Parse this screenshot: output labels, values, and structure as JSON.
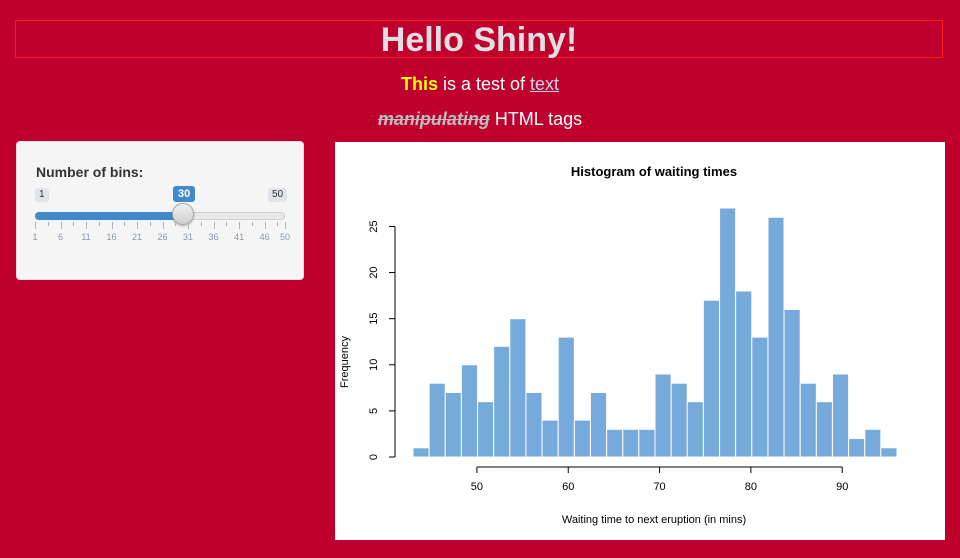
{
  "header": {
    "title": "Hello Shiny!"
  },
  "intro": {
    "highlight": "This",
    "middle": " is a test of ",
    "link": "text",
    "strike": "manipulating",
    "rest": " HTML tags"
  },
  "slider": {
    "label": "Number of bins:",
    "min": 1,
    "max": 50,
    "value": 30,
    "ticks": [
      "1",
      "6",
      "11",
      "16",
      "21",
      "26",
      "31",
      "36",
      "41",
      "46",
      "50"
    ]
  },
  "colors": {
    "background": "#bf002e",
    "accent": "#428bca",
    "bars": "#75aadb"
  },
  "chart_data": {
    "type": "bar",
    "title": "Histogram of waiting times",
    "xlabel": "Waiting time to next eruption (in mins)",
    "ylabel": "Frequency",
    "xlim": [
      43,
      96
    ],
    "ylim": [
      0,
      27
    ],
    "xticks": [
      50,
      60,
      70,
      80,
      90
    ],
    "yticks": [
      0,
      5,
      10,
      15,
      20,
      25
    ],
    "bin_edges": [
      43,
      44.77,
      46.53,
      48.3,
      50.07,
      51.83,
      53.6,
      55.37,
      57.13,
      58.9,
      60.67,
      62.43,
      64.2,
      65.97,
      67.73,
      69.5,
      71.27,
      73.03,
      74.8,
      76.57,
      78.33,
      80.1,
      81.87,
      83.63,
      85.4,
      87.17,
      88.93,
      90.7,
      92.47,
      94.23,
      96
    ],
    "values": [
      1,
      8,
      7,
      10,
      6,
      12,
      15,
      7,
      4,
      13,
      4,
      7,
      3,
      3,
      3,
      9,
      8,
      6,
      17,
      27,
      18,
      13,
      26,
      16,
      8,
      6,
      9,
      2,
      3,
      1
    ],
    "grid": false
  }
}
